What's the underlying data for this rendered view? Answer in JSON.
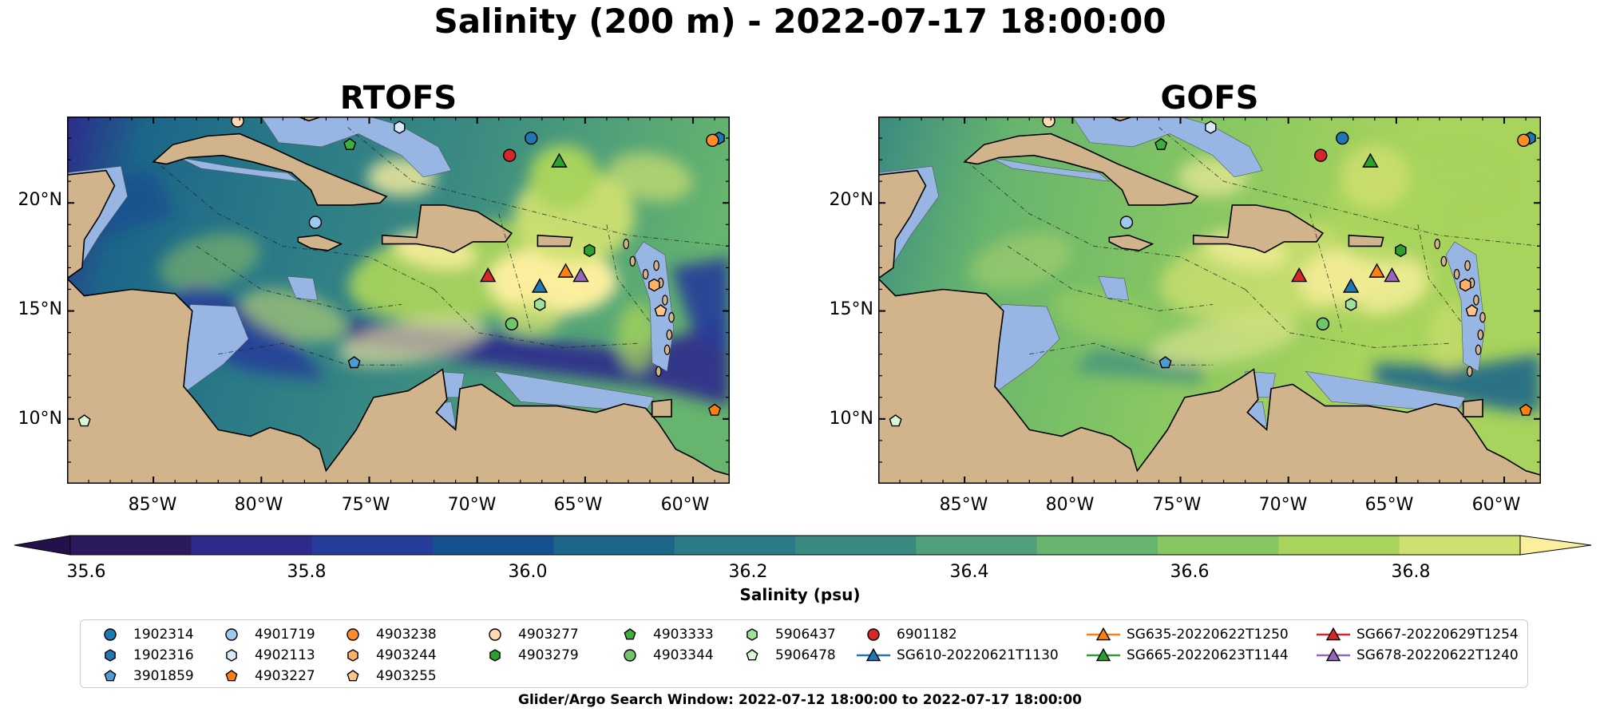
{
  "figure": {
    "title": "Salinity (200 m) - 2022-07-17 18:00:00",
    "footnote": "Glider/Argo Search Window: 2022-07-12 18:00:00 to 2022-07-17 18:00:00"
  },
  "panels": [
    {
      "id": "rtofs",
      "title": "RTOFS",
      "scheme": "fresh"
    },
    {
      "id": "gofs",
      "title": "GOFS",
      "scheme": "salty"
    }
  ],
  "axes": {
    "lat_ticks": [
      "20°N",
      "15°N",
      "10°N"
    ],
    "lon_ticks": [
      "85°W",
      "80°W",
      "75°W",
      "70°W",
      "65°W",
      "60°W"
    ]
  },
  "colorbar": {
    "label": "Salinity (psu)",
    "ticks": [
      "35.6",
      "35.8",
      "36.0",
      "36.2",
      "36.4",
      "36.6",
      "36.8"
    ],
    "range": [
      35.6,
      36.9
    ],
    "extend": "both",
    "colors": [
      "#2b1a5e",
      "#2d2a8c",
      "#253c9a",
      "#17508f",
      "#1c6689",
      "#2a7a88",
      "#3a8a82",
      "#4fa07a",
      "#66b46e",
      "#86c663",
      "#a8d35c",
      "#cfe071"
    ],
    "under_color": "#23124a",
    "over_color": "#fbef9e"
  },
  "land_color": "#d2b48c",
  "shelf_color": "#98b6e4",
  "legend": {
    "columns": [
      [
        {
          "label": "1902314",
          "marker": "circle",
          "color": "#1f77b4"
        },
        {
          "label": "1902316",
          "marker": "hexagon",
          "color": "#1f77b4"
        },
        {
          "label": "3901859",
          "marker": "pentagon",
          "color": "#4b9cd3"
        }
      ],
      [
        {
          "label": "4901719",
          "marker": "circle",
          "color": "#9ec9ef"
        },
        {
          "label": "4902113",
          "marker": "hexagon",
          "color": "#d6e9f8"
        },
        {
          "label": "4903227",
          "marker": "pentagon",
          "color": "#ff7f0e"
        }
      ],
      [
        {
          "label": "4903238",
          "marker": "circle",
          "color": "#ff8c2a"
        },
        {
          "label": "4903244",
          "marker": "hexagon",
          "color": "#ffb067"
        },
        {
          "label": "4903255",
          "marker": "pentagon",
          "color": "#ffc48a"
        }
      ],
      [
        {
          "label": "4903277",
          "marker": "circle",
          "color": "#ffd9b0"
        },
        {
          "label": "4903279",
          "marker": "hexagon",
          "color": "#2ca02c"
        }
      ],
      [
        {
          "label": "4903333",
          "marker": "pentagon",
          "color": "#3fae3f"
        },
        {
          "label": "4903344",
          "marker": "circle",
          "color": "#70c46a"
        }
      ],
      [
        {
          "label": "5906437",
          "marker": "hexagon",
          "color": "#9ee29a"
        },
        {
          "label": "5906478",
          "marker": "pentagon",
          "color": "#d8f7d4"
        }
      ],
      [
        {
          "label": "6901182",
          "marker": "circle",
          "color": "#d62728"
        },
        {
          "label": "SG610-20220621T1130",
          "marker": "triangle-line",
          "color": "#1f77b4"
        }
      ],
      [
        {
          "label": "SG635-20220622T1250",
          "marker": "triangle-line",
          "color": "#ff7f0e"
        },
        {
          "label": "SG665-20220623T1144",
          "marker": "triangle-line",
          "color": "#2ca02c"
        }
      ],
      [
        {
          "label": "SG667-20220629T1254",
          "marker": "triangle-line",
          "color": "#d62728"
        },
        {
          "label": "SG678-20220622T1240",
          "marker": "triangle-line",
          "color": "#9467bd"
        }
      ]
    ]
  },
  "platforms": [
    {
      "label": "1902314",
      "marker": "circle",
      "color": "#1f77b4",
      "lon": -67.5,
      "lat": 23.0
    },
    {
      "label": "1902316",
      "marker": "hexagon",
      "color": "#1f77b4",
      "lon": -58.8,
      "lat": 23.0
    },
    {
      "label": "3901859",
      "marker": "pentagon",
      "color": "#4b9cd3",
      "lon": -75.7,
      "lat": 12.6
    },
    {
      "label": "4901719",
      "marker": "circle",
      "color": "#9ec9ef",
      "lon": -77.5,
      "lat": 19.1
    },
    {
      "label": "4902113",
      "marker": "hexagon",
      "color": "#d6e9f8",
      "lon": -73.6,
      "lat": 23.5
    },
    {
      "label": "4903227",
      "marker": "pentagon",
      "color": "#ff7f0e",
      "lon": -59.0,
      "lat": 10.4
    },
    {
      "label": "4903238",
      "marker": "circle",
      "color": "#ff8c2a",
      "lon": -59.1,
      "lat": 22.9
    },
    {
      "label": "4903244",
      "marker": "hexagon",
      "color": "#ffb067",
      "lon": -61.8,
      "lat": 16.2
    },
    {
      "label": "4903255",
      "marker": "pentagon",
      "color": "#ffc48a",
      "lon": -61.5,
      "lat": 15.0
    },
    {
      "label": "4903277",
      "marker": "circle",
      "color": "#ffd9b0",
      "lon": -81.1,
      "lat": 23.8
    },
    {
      "label": "4903279",
      "marker": "hexagon",
      "color": "#2ca02c",
      "lon": -64.8,
      "lat": 17.8
    },
    {
      "label": "4903333",
      "marker": "pentagon",
      "color": "#3fae3f",
      "lon": -75.9,
      "lat": 22.7
    },
    {
      "label": "4903344",
      "marker": "circle",
      "color": "#70c46a",
      "lon": -68.4,
      "lat": 14.4
    },
    {
      "label": "5906437",
      "marker": "hexagon",
      "color": "#9ee29a",
      "lon": -67.1,
      "lat": 15.3
    },
    {
      "label": "5906478",
      "marker": "pentagon",
      "color": "#d8f7d4",
      "lon": -88.2,
      "lat": 9.9
    },
    {
      "label": "6901182",
      "marker": "circle",
      "color": "#d62728",
      "lon": -68.5,
      "lat": 22.2
    },
    {
      "label": "SG610-20220621T1130",
      "marker": "triangle",
      "color": "#1f77b4",
      "lon": -67.1,
      "lat": 16.1
    },
    {
      "label": "SG635-20220622T1250",
      "marker": "triangle",
      "color": "#ff7f0e",
      "lon": -65.9,
      "lat": 16.8
    },
    {
      "label": "SG665-20220623T1144",
      "marker": "triangle",
      "color": "#2ca02c",
      "lon": -66.2,
      "lat": 21.9
    },
    {
      "label": "SG667-20220629T1254",
      "marker": "triangle",
      "color": "#d62728",
      "lon": -69.5,
      "lat": 16.6
    },
    {
      "label": "SG678-20220622T1240",
      "marker": "triangle",
      "color": "#9467bd",
      "lon": -65.2,
      "lat": 16.6
    }
  ]
}
